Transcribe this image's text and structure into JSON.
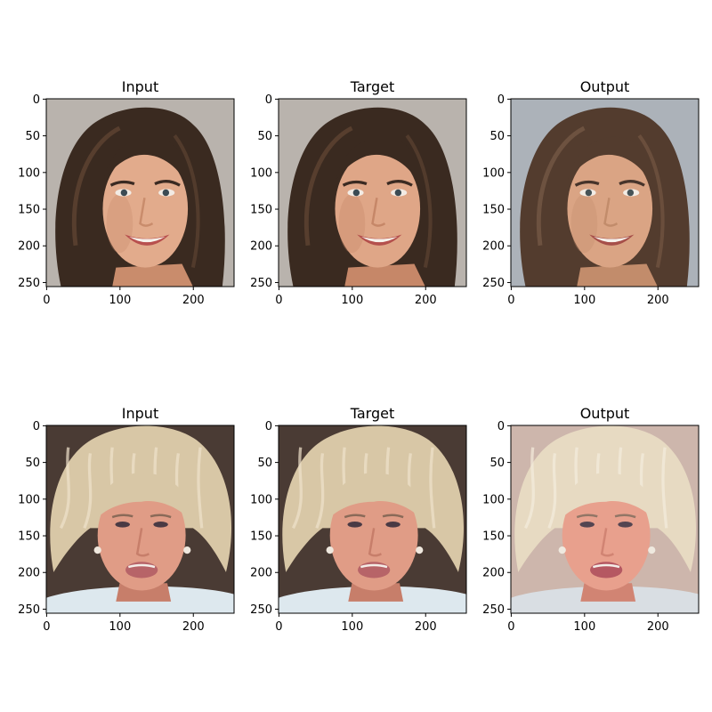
{
  "figure": {
    "panels": [
      {
        "row": 0,
        "col": 0,
        "title": "Input",
        "subject": "woman with long brown hair smiling",
        "palette": {
          "bg": "#b9b3ad",
          "hair": "#3a2a20",
          "hair_hi": "#6a4c38",
          "skin": "#e2ab8c",
          "skin_sh": "#c98c6c",
          "lips": "#b8504e",
          "eyes": "#3b4b54",
          "brow": "#3a2a22"
        }
      },
      {
        "row": 0,
        "col": 1,
        "title": "Target",
        "subject": "woman with long brown hair smiling",
        "palette": {
          "bg": "#b9b3ad",
          "hair": "#3a2a20",
          "hair_hi": "#6a4c38",
          "skin": "#dfa687",
          "skin_sh": "#c68768",
          "lips": "#b4504c",
          "eyes": "#3b4b54",
          "brow": "#3a2a22"
        }
      },
      {
        "row": 0,
        "col": 2,
        "title": "Output",
        "subject": "reconstructed woman with long brown hair smiling",
        "palette": {
          "bg": "#a8aeb6",
          "hair": "#4a3223",
          "hair_hi": "#7a5842",
          "skin": "#d9a07e",
          "skin_sh": "#bf8664",
          "lips": "#a24640",
          "eyes": "#3d4a4e",
          "brow": "#3e2a20"
        }
      },
      {
        "row": 1,
        "col": 0,
        "title": "Input",
        "subject": "older woman with blonde bouffant hair",
        "palette": {
          "bg": "#4a3b34",
          "hair": "#d8c7a6",
          "hair_hi": "#efe3cc",
          "skin": "#e09c86",
          "skin_sh": "#c77e6a",
          "lips": "#b76468",
          "eyes": "#4a3a44",
          "brow": "#8a6a58",
          "collar": "#dde8ee"
        }
      },
      {
        "row": 1,
        "col": 1,
        "title": "Target",
        "subject": "older woman with blonde bouffant hair",
        "palette": {
          "bg": "#4a3b34",
          "hair": "#d8c7a6",
          "hair_hi": "#efe3cc",
          "skin": "#e09c86",
          "skin_sh": "#c77e6a",
          "lips": "#b76468",
          "eyes": "#4a3a44",
          "brow": "#8a6a58",
          "collar": "#dde8ee"
        }
      },
      {
        "row": 1,
        "col": 2,
        "title": "Output",
        "subject": "reconstructed older woman with blonde hair",
        "palette": {
          "bg": "#cbb3a8",
          "hair": "#e6d8bf",
          "hair_hi": "#f4ecdc",
          "skin": "#e79b87",
          "skin_sh": "#cf7e6c",
          "lips": "#b2505a",
          "eyes": "#4b3b48",
          "brow": "#8d6f5e",
          "collar": "#d7dde2"
        }
      }
    ],
    "xticks": [
      0,
      100,
      200
    ],
    "yticks": [
      0,
      50,
      100,
      150,
      200,
      250
    ],
    "image_extent": 256
  }
}
